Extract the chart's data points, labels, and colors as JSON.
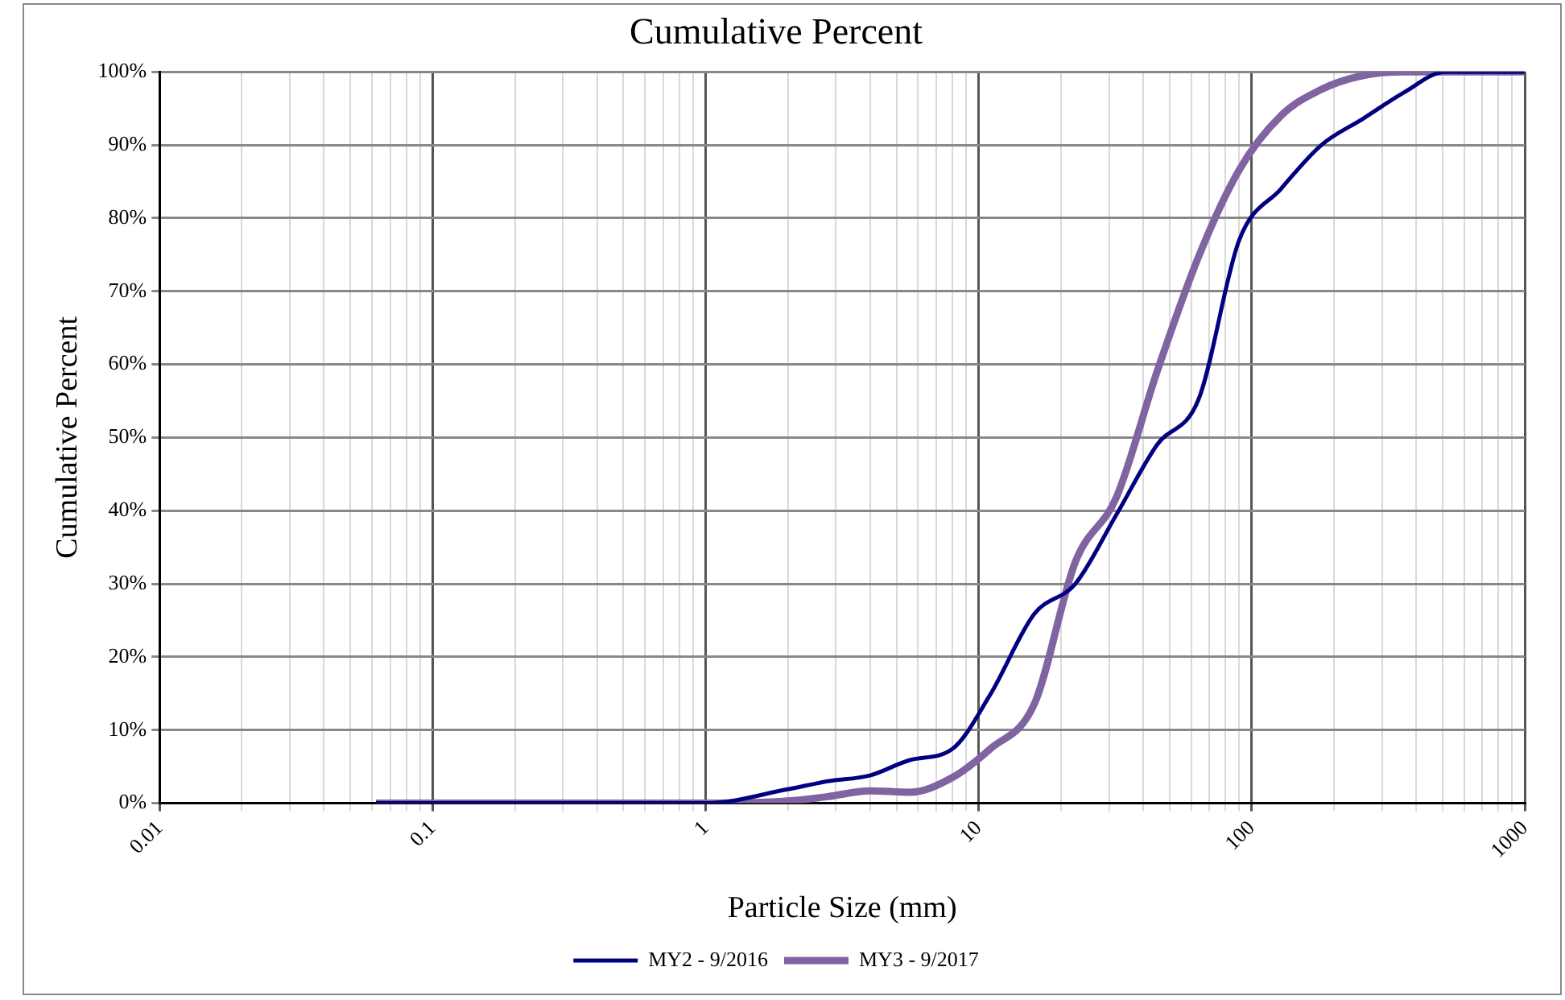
{
  "chart_data": {
    "type": "line",
    "title": "Cumulative Percent",
    "xlabel": "Particle Size (mm)",
    "ylabel": "Cumulative Percent",
    "log": "x",
    "grid": true,
    "legend": "bottom",
    "marker": "none",
    "line_style": "solid",
    "xlim": [
      0.01,
      1000
    ],
    "xticks": [
      0.01,
      {
        "value": 0.02,
        "label": null
      },
      {
        "value": 0.03,
        "label": null
      },
      {
        "value": 0.04,
        "label": null
      },
      {
        "value": 0.05,
        "label": null
      },
      {
        "value": 0.06,
        "label": null
      },
      {
        "value": 0.07,
        "label": null
      },
      {
        "value": 0.08,
        "label": null
      },
      {
        "value": 0.09,
        "label": null
      },
      0.1,
      {
        "value": 0.2,
        "label": null
      },
      {
        "value": 0.3,
        "label": null
      },
      {
        "value": 0.4,
        "label": null
      },
      {
        "value": 0.5,
        "label": null
      },
      {
        "value": 0.6,
        "label": null
      },
      {
        "value": 0.7,
        "label": null
      },
      {
        "value": 0.8,
        "label": null
      },
      {
        "value": 0.9,
        "label": null
      },
      1,
      {
        "value": 2,
        "label": null
      },
      {
        "value": 3,
        "label": null
      },
      {
        "value": 4,
        "label": null
      },
      {
        "value": 5,
        "label": null
      },
      {
        "value": 6,
        "label": null
      },
      {
        "value": 7,
        "label": null
      },
      {
        "value": 8,
        "label": null
      },
      {
        "value": 9,
        "label": null
      },
      10,
      {
        "value": 20,
        "label": null
      },
      {
        "value": 30,
        "label": null
      },
      {
        "value": 40,
        "label": null
      },
      {
        "value": 50,
        "label": null
      },
      {
        "value": 60,
        "label": null
      },
      {
        "value": 70,
        "label": null
      },
      {
        "value": 80,
        "label": null
      },
      {
        "value": 90,
        "label": null
      },
      100,
      {
        "value": 200,
        "label": null
      },
      {
        "value": 300,
        "label": null
      },
      {
        "value": 400,
        "label": null
      },
      {
        "value": 500,
        "label": null
      },
      {
        "value": 600,
        "label": null
      },
      {
        "value": 700,
        "label": null
      },
      {
        "value": 800,
        "label": null
      },
      {
        "value": 900,
        "label": null
      },
      1000
    ],
    "ylim": [
      0,
      100
    ],
    "yticks": [
      {
        "value": 0,
        "label": "0%"
      },
      {
        "value": 10,
        "label": "10%"
      },
      {
        "value": 20,
        "label": "20%"
      },
      {
        "value": 30,
        "label": "30%"
      },
      {
        "value": 40,
        "label": "40%"
      },
      {
        "value": 50,
        "label": "50%"
      },
      {
        "value": 60,
        "label": "60%"
      },
      {
        "value": 70,
        "label": "70%"
      },
      {
        "value": 80,
        "label": "80%"
      },
      {
        "value": 90,
        "label": "90%"
      },
      {
        "value": 100,
        "label": "100%"
      }
    ],
    "x": [
      0.062,
      0.125,
      0.25,
      0.5,
      1,
      2,
      2.8,
      4,
      5.6,
      8,
      11,
      16,
      22.6,
      32,
      45,
      64,
      90,
      128,
      180,
      256,
      362,
      512,
      1000
    ],
    "series": [
      {
        "name": "MY2 - 9/2016",
        "color": "#000080",
        "values": [
          0,
          0,
          0,
          0,
          0,
          1.9,
          3,
          3.8,
          5.9,
          7.4,
          14.8,
          25.9,
          30,
          39.5,
          49,
          55.3,
          77,
          84,
          90,
          93.6,
          97.2,
          100,
          100
        ]
      },
      {
        "name": "MY3 - 9/2017",
        "color": "#8064a2",
        "values": [
          0,
          0,
          0,
          0,
          0,
          0.3,
          0.9,
          1.7,
          1.5,
          3.5,
          7.4,
          13.6,
          33,
          41.9,
          59,
          74.8,
          86.6,
          94,
          97.6,
          99.5,
          100,
          100,
          100
        ]
      }
    ]
  }
}
